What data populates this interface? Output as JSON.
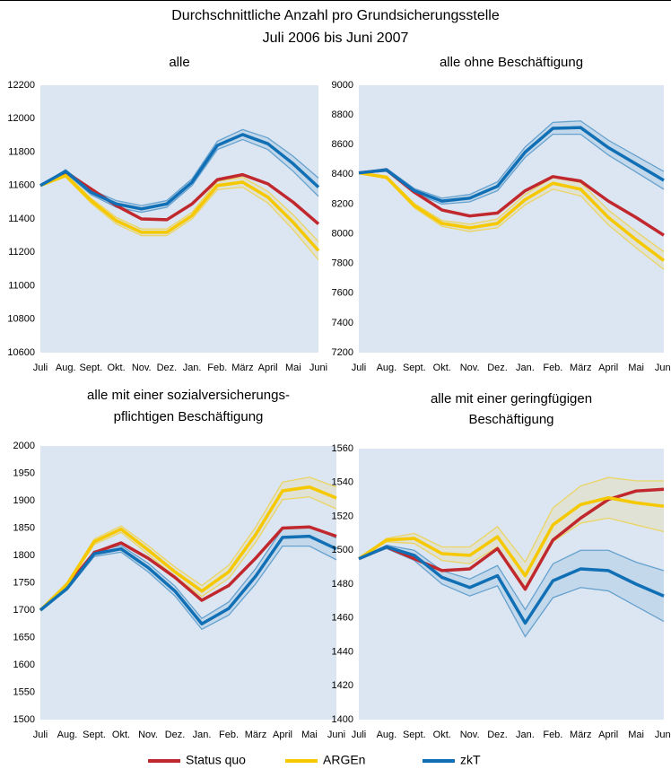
{
  "title": "Durchschnittliche Anzahl pro Grundsicherungsstelle",
  "subtitle": "Juli 2006 bis Juni 2007",
  "legend": {
    "position": "bottom",
    "series": [
      {
        "name": "Status quo",
        "color": "#c0282d"
      },
      {
        "name": "ARGEn",
        "color": "#f5c800"
      },
      {
        "name": "zkT",
        "color": "#1170b5"
      }
    ]
  },
  "chart_data": [
    {
      "type": "line",
      "title": [
        "alle"
      ],
      "categories": [
        "Juli",
        "Aug.",
        "Sept.",
        "Okt.",
        "Nov.",
        "Dez.",
        "Jan.",
        "Feb.",
        "März",
        "April",
        "Mai",
        "Juni"
      ],
      "ylim": [
        10600,
        12200
      ],
      "yticks": [
        10600,
        10800,
        11000,
        11200,
        11400,
        11600,
        11800,
        12000,
        12200
      ],
      "series": [
        {
          "values": [
            11600,
            11680,
            11580,
            11480,
            11400,
            11395,
            11490,
            11635,
            11665,
            11610,
            11500,
            11370
          ]
        },
        {
          "values": [
            11600,
            11660,
            11510,
            11390,
            11320,
            11320,
            11420,
            11600,
            11620,
            11530,
            11380,
            11210
          ],
          "lower": [
            11600,
            11650,
            11495,
            11370,
            11300,
            11300,
            11400,
            11575,
            11590,
            11495,
            11335,
            11155
          ],
          "upper": [
            11600,
            11670,
            11525,
            11410,
            11340,
            11340,
            11440,
            11625,
            11650,
            11565,
            11425,
            11265
          ]
        },
        {
          "values": [
            11600,
            11685,
            11560,
            11490,
            11460,
            11490,
            11620,
            11840,
            11905,
            11850,
            11730,
            11590
          ],
          "lower": [
            11600,
            11675,
            11545,
            11470,
            11440,
            11470,
            11600,
            11815,
            11875,
            11815,
            11685,
            11535
          ],
          "upper": [
            11600,
            11695,
            11575,
            11510,
            11480,
            11510,
            11640,
            11865,
            11935,
            11885,
            11775,
            11645
          ]
        }
      ]
    },
    {
      "type": "line",
      "title": [
        "alle ohne Beschäftigung"
      ],
      "categories": [
        "Juli",
        "Aug.",
        "Sept.",
        "Okt.",
        "Nov.",
        "Dez.",
        "Jan.",
        "Feb.",
        "März",
        "April",
        "Mai",
        "Juni"
      ],
      "ylim": [
        7200,
        9000
      ],
      "yticks": [
        7200,
        7400,
        7600,
        7800,
        8000,
        8200,
        8400,
        8600,
        8800,
        9000
      ],
      "series": [
        {
          "values": [
            8410,
            8430,
            8280,
            8160,
            8120,
            8140,
            8290,
            8385,
            8355,
            8220,
            8110,
            7990
          ]
        },
        {
          "values": [
            8410,
            8380,
            8190,
            8070,
            8040,
            8070,
            8230,
            8340,
            8300,
            8110,
            7960,
            7820
          ],
          "lower": [
            8410,
            8370,
            8175,
            8050,
            8015,
            8040,
            8195,
            8300,
            8255,
            8060,
            7905,
            7760
          ],
          "upper": [
            8410,
            8390,
            8205,
            8090,
            8065,
            8100,
            8265,
            8380,
            8345,
            8160,
            8015,
            7880
          ]
        },
        {
          "values": [
            8410,
            8430,
            8290,
            8220,
            8240,
            8320,
            8550,
            8710,
            8715,
            8580,
            8470,
            8360
          ],
          "lower": [
            8410,
            8420,
            8275,
            8200,
            8215,
            8290,
            8515,
            8670,
            8670,
            8530,
            8415,
            8300
          ],
          "upper": [
            8410,
            8440,
            8305,
            8240,
            8265,
            8350,
            8585,
            8750,
            8760,
            8630,
            8525,
            8420
          ]
        }
      ]
    },
    {
      "type": "line",
      "title": [
        "alle mit einer sozialversicherungs-",
        "pflichtigen Beschäftigung"
      ],
      "categories": [
        "Juli",
        "Aug.",
        "Sept.",
        "Okt.",
        "Nov.",
        "Dez.",
        "Jan.",
        "Feb.",
        "März",
        "April",
        "Mai",
        "Juni"
      ],
      "ylim": [
        1500,
        2000
      ],
      "yticks": [
        1500,
        1550,
        1600,
        1650,
        1700,
        1750,
        1800,
        1850,
        1900,
        1950,
        2000
      ],
      "series": [
        {
          "values": [
            1700,
            1745,
            1805,
            1823,
            1795,
            1760,
            1718,
            1745,
            1795,
            1850,
            1852,
            1835
          ]
        },
        {
          "values": [
            1700,
            1748,
            1825,
            1848,
            1810,
            1770,
            1735,
            1770,
            1838,
            1918,
            1925,
            1905
          ],
          "lower": [
            1700,
            1745,
            1820,
            1842,
            1802,
            1761,
            1725,
            1758,
            1824,
            1902,
            1907,
            1885
          ],
          "upper": [
            1700,
            1751,
            1830,
            1854,
            1818,
            1779,
            1745,
            1782,
            1852,
            1934,
            1943,
            1925
          ]
        },
        {
          "values": [
            1700,
            1740,
            1803,
            1812,
            1778,
            1735,
            1675,
            1703,
            1762,
            1833,
            1835,
            1812
          ],
          "lower": [
            1700,
            1737,
            1798,
            1806,
            1770,
            1726,
            1665,
            1691,
            1748,
            1817,
            1817,
            1792
          ],
          "upper": [
            1700,
            1743,
            1808,
            1818,
            1786,
            1744,
            1685,
            1715,
            1776,
            1849,
            1853,
            1832
          ]
        }
      ]
    },
    {
      "type": "line",
      "title": [
        "alle mit einer geringfügigen",
        "Beschäftigung"
      ],
      "categories": [
        "Juli",
        "Aug.",
        "Sept.",
        "Okt.",
        "Nov.",
        "Dez.",
        "Jan.",
        "Feb.",
        "März",
        "April",
        "Mai",
        "Juni"
      ],
      "ylim": [
        1400,
        1560
      ],
      "yticks": [
        1400,
        1420,
        1440,
        1460,
        1480,
        1500,
        1520,
        1540,
        1560
      ],
      "series": [
        {
          "values": [
            1495,
            1502,
            1495,
            1488,
            1489,
            1501,
            1477,
            1506,
            1519,
            1530,
            1535,
            1536
          ]
        },
        {
          "values": [
            1495,
            1506,
            1507,
            1498,
            1497,
            1508,
            1485,
            1515,
            1527,
            1531,
            1528,
            1526
          ],
          "lower": [
            1495,
            1505,
            1504,
            1494,
            1492,
            1502,
            1477,
            1505,
            1516,
            1519,
            1515,
            1511
          ],
          "upper": [
            1495,
            1507,
            1510,
            1502,
            1502,
            1514,
            1493,
            1525,
            1538,
            1543,
            1541,
            1541
          ]
        },
        {
          "values": [
            1495,
            1502,
            1497,
            1484,
            1478,
            1485,
            1457,
            1482,
            1489,
            1488,
            1480,
            1473
          ],
          "lower": [
            1495,
            1501,
            1494,
            1480,
            1473,
            1479,
            1449,
            1472,
            1478,
            1476,
            1467,
            1458
          ],
          "upper": [
            1495,
            1503,
            1500,
            1488,
            1483,
            1491,
            1465,
            1492,
            1500,
            1500,
            1493,
            1488
          ]
        }
      ]
    }
  ]
}
